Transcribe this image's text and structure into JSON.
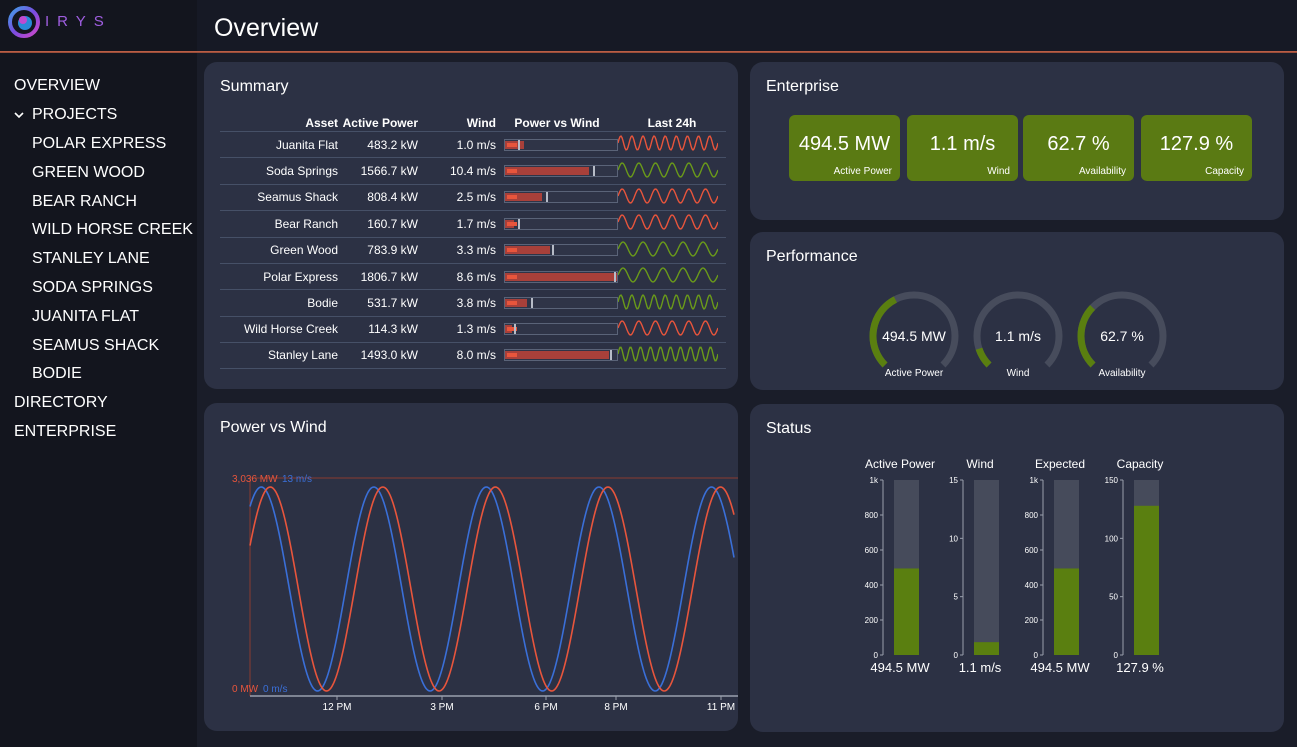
{
  "brand": {
    "name": "IRYS",
    "accent": "#9f5ee0"
  },
  "page": {
    "title": "Overview"
  },
  "nav": {
    "overview": "OVERVIEW",
    "projects": "PROJECTS",
    "projects_items": [
      "POLAR EXPRESS",
      "GREEN WOOD",
      "BEAR RANCH",
      "WILD HORSE CREEK",
      "STANLEY LANE",
      "SODA SPRINGS",
      "JUANITA FLAT",
      "SEAMUS SHACK",
      "BODIE"
    ],
    "directory": "DIRECTORY",
    "enterprise": "ENTERPRISE"
  },
  "summary": {
    "title": "Summary",
    "headers": {
      "asset": "Asset",
      "power": "Active Power",
      "wind": "Wind",
      "pvw": "Power vs Wind",
      "hist": "Last 24h"
    },
    "rows": [
      {
        "asset": "Juanita Flat",
        "power": "483.2 kW",
        "wind": "1.0 m/s",
        "pvw_fill": 0.17,
        "pvw_mark": 0.12,
        "spark_color": "#e8553c",
        "spark_cycles": 9
      },
      {
        "asset": "Soda Springs",
        "power": "1566.7 kW",
        "wind": "10.4 m/s",
        "pvw_fill": 0.75,
        "pvw_mark": 0.8,
        "spark_color": "#6a9a1a",
        "spark_cycles": 6
      },
      {
        "asset": "Seamus Shack",
        "power": "808.4 kW",
        "wind": "2.5 m/s",
        "pvw_fill": 0.33,
        "pvw_mark": 0.37,
        "spark_color": "#e8553c",
        "spark_cycles": 6
      },
      {
        "asset": "Bear Ranch",
        "power": "160.7 kW",
        "wind": "1.7 m/s",
        "pvw_fill": 0.08,
        "pvw_mark": 0.12,
        "spark_color": "#e8553c",
        "spark_cycles": 6
      },
      {
        "asset": "Green Wood",
        "power": "783.9 kW",
        "wind": "3.3 m/s",
        "pvw_fill": 0.4,
        "pvw_mark": 0.43,
        "spark_color": "#6a9a1a",
        "spark_cycles": 5
      },
      {
        "asset": "Polar Express",
        "power": "1806.7 kW",
        "wind": "8.6 m/s",
        "pvw_fill": 1.0,
        "pvw_mark": 0.99,
        "spark_color": "#6a9a1a",
        "spark_cycles": 5
      },
      {
        "asset": "Bodie",
        "power": "531.7 kW",
        "wind": "3.8 m/s",
        "pvw_fill": 0.2,
        "pvw_mark": 0.24,
        "spark_color": "#6a9a1a",
        "spark_cycles": 9
      },
      {
        "asset": "Wild Horse Creek",
        "power": "114.3 kW",
        "wind": "1.3 m/s",
        "pvw_fill": 0.06,
        "pvw_mark": 0.08,
        "spark_color": "#e8553c",
        "spark_cycles": 6
      },
      {
        "asset": "Stanley Lane",
        "power": "1493.0 kW",
        "wind": "8.0 m/s",
        "pvw_fill": 0.93,
        "pvw_mark": 0.95,
        "spark_color": "#6a9a1a",
        "spark_cycles": 10
      }
    ]
  },
  "enterprise": {
    "title": "Enterprise",
    "kpis": [
      {
        "value": "494.5 MW",
        "label": "Active Power"
      },
      {
        "value": "1.1 m/s",
        "label": "Wind"
      },
      {
        "value": "62.7 %",
        "label": "Availability"
      },
      {
        "value": "127.9 %",
        "label": "Capacity"
      }
    ],
    "kpi_color": "#5a7a13"
  },
  "performance": {
    "title": "Performance",
    "gauges": [
      {
        "value": "494.5 MW",
        "label": "Active Power",
        "fraction": 0.4
      },
      {
        "value": "1.1 m/s",
        "label": "Wind",
        "fraction": 0.1
      },
      {
        "value": "62.7 %",
        "label": "Availability",
        "fraction": 0.33
      }
    ]
  },
  "power_vs_wind": {
    "title": "Power vs Wind",
    "power_color": "#e8553c",
    "wind_color": "#3a6fd8"
  },
  "status": {
    "title": "Status",
    "bar_color": "#5a7f10"
  },
  "chart_data": [
    {
      "type": "line",
      "title": "Power vs Wind",
      "x": [
        "12 PM",
        "3 PM",
        "6 PM",
        "8 PM",
        "11 PM"
      ],
      "series": [
        {
          "name": "Active Power",
          "unit": "MW",
          "range": [
            0,
            3036
          ],
          "max_label": "3,036 MW",
          "min_label": "0 MW",
          "cycles": 4.3,
          "phase": 0.0
        },
        {
          "name": "Wind",
          "unit": "m/s",
          "range": [
            0,
            13
          ],
          "max_label": "13 m/s",
          "min_label": "0 m/s",
          "cycles": 4.3,
          "phase": 0.08
        }
      ]
    },
    {
      "type": "bar",
      "title": "Status",
      "categories": [
        "Active Power",
        "Wind",
        "Expected",
        "Capacity"
      ],
      "values": [
        494.5,
        1.1,
        494.5,
        127.9
      ],
      "value_labels": [
        "494.5 MW",
        "1.1 m/s",
        "494.5 MW",
        "127.9 %"
      ],
      "ylims": [
        [
          0,
          1000
        ],
        [
          0,
          15
        ],
        [
          0,
          1000
        ],
        [
          0,
          150
        ]
      ],
      "ticks": [
        [
          "0",
          "200",
          "400",
          "600",
          "800",
          "1k"
        ],
        [
          "0",
          "5",
          "10",
          "15"
        ],
        [
          "0",
          "200",
          "400",
          "600",
          "800",
          "1k"
        ],
        [
          "0",
          "50",
          "100",
          "150"
        ]
      ],
      "tick_values": [
        [
          0,
          200,
          400,
          600,
          800,
          1000
        ],
        [
          0,
          5,
          10,
          15
        ],
        [
          0,
          200,
          400,
          600,
          800,
          1000
        ],
        [
          0,
          50,
          100,
          150
        ]
      ]
    }
  ]
}
